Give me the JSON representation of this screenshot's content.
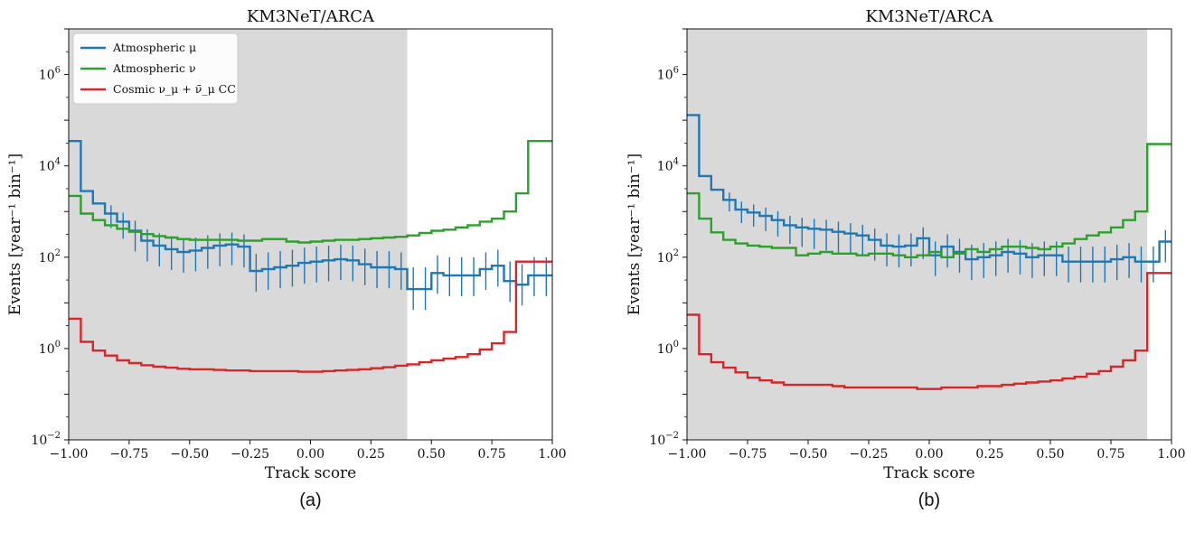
{
  "chart_data": [
    {
      "type": "line",
      "title": "KM3NeT/ARCA",
      "caption": "(a)",
      "xlabel": "Track score",
      "ylabel": "Events [year⁻¹ bin⁻¹]",
      "xlim": [
        -1.0,
        1.0
      ],
      "ylim_log10": [
        -2,
        7
      ],
      "xticks": [
        "−1.00",
        "−0.75",
        "−0.50",
        "−0.25",
        "0.00",
        "0.25",
        "0.50",
        "0.75",
        "1.00"
      ],
      "yticks": [
        {
          "base": "10",
          "exp": "−2",
          "value_log10": -2
        },
        {
          "base": "10",
          "exp": "0",
          "value_log10": 0
        },
        {
          "base": "10",
          "exp": "2",
          "value_log10": 2
        },
        {
          "base": "10",
          "exp": "4",
          "value_log10": 4
        },
        {
          "base": "10",
          "exp": "6",
          "value_log10": 6
        }
      ],
      "shaded_region": [
        -1.0,
        0.4
      ],
      "legend_position": "top-left",
      "bin_edges": [
        -1.0,
        -0.95,
        -0.9,
        -0.85,
        -0.8,
        -0.75,
        -0.7,
        -0.65,
        -0.6,
        -0.55,
        -0.5,
        -0.45,
        -0.4,
        -0.35,
        -0.3,
        -0.25,
        -0.2,
        -0.15,
        -0.1,
        -0.05,
        0.0,
        0.05,
        0.1,
        0.15,
        0.2,
        0.25,
        0.3,
        0.35,
        0.4,
        0.45,
        0.5,
        0.55,
        0.6,
        0.65,
        0.7,
        0.75,
        0.8,
        0.85,
        0.9,
        0.95,
        1.0
      ],
      "series": [
        {
          "name": "Atmospheric μ",
          "color": "#1f77b4",
          "errorbars": true,
          "values": [
            35000,
            2800,
            1500,
            900,
            600,
            380,
            230,
            180,
            150,
            130,
            140,
            160,
            180,
            190,
            170,
            50,
            55,
            60,
            65,
            75,
            80,
            85,
            90,
            85,
            70,
            60,
            60,
            55,
            20,
            20,
            45,
            40,
            40,
            40,
            55,
            65,
            30,
            25,
            40,
            40
          ]
        },
        {
          "name": "Atmospheric ν",
          "color": "#2ca02c",
          "errorbars": false,
          "values": [
            2200,
            900,
            650,
            500,
            420,
            360,
            320,
            290,
            270,
            250,
            240,
            240,
            240,
            240,
            230,
            230,
            250,
            250,
            220,
            210,
            220,
            230,
            240,
            240,
            250,
            260,
            270,
            280,
            300,
            340,
            380,
            400,
            450,
            500,
            600,
            700,
            1000,
            2500,
            35000,
            35000
          ]
        },
        {
          "name": "Cosmic ν_μ + ν̄_μ CC",
          "color": "#d62728",
          "errorbars": false,
          "values": [
            4.5,
            1.4,
            0.9,
            0.7,
            0.55,
            0.48,
            0.43,
            0.4,
            0.38,
            0.36,
            0.35,
            0.35,
            0.34,
            0.33,
            0.33,
            0.32,
            0.32,
            0.32,
            0.32,
            0.31,
            0.31,
            0.32,
            0.33,
            0.34,
            0.35,
            0.37,
            0.39,
            0.42,
            0.45,
            0.5,
            0.55,
            0.6,
            0.65,
            0.75,
            0.95,
            1.3,
            2.3,
            80,
            80,
            80
          ]
        }
      ]
    },
    {
      "type": "line",
      "title": "KM3NeT/ARCA",
      "caption": "(b)",
      "xlabel": "Track score",
      "ylabel": "Events [year⁻¹ bin⁻¹]",
      "xlim": [
        -1.0,
        1.0
      ],
      "ylim_log10": [
        -2,
        7
      ],
      "xticks": [
        "−1.00",
        "−0.75",
        "−0.50",
        "−0.25",
        "0.00",
        "0.25",
        "0.50",
        "0.75",
        "1.00"
      ],
      "yticks": [
        {
          "base": "10",
          "exp": "−2",
          "value_log10": -2
        },
        {
          "base": "10",
          "exp": "0",
          "value_log10": 0
        },
        {
          "base": "10",
          "exp": "2",
          "value_log10": 2
        },
        {
          "base": "10",
          "exp": "4",
          "value_log10": 4
        },
        {
          "base": "10",
          "exp": "6",
          "value_log10": 6
        }
      ],
      "shaded_region": [
        -1.0,
        0.9
      ],
      "bin_edges": [
        -1.0,
        -0.95,
        -0.9,
        -0.85,
        -0.8,
        -0.75,
        -0.7,
        -0.65,
        -0.6,
        -0.55,
        -0.5,
        -0.45,
        -0.4,
        -0.35,
        -0.3,
        -0.25,
        -0.2,
        -0.15,
        -0.1,
        -0.05,
        0.0,
        0.05,
        0.1,
        0.15,
        0.2,
        0.25,
        0.3,
        0.35,
        0.4,
        0.45,
        0.5,
        0.55,
        0.6,
        0.65,
        0.7,
        0.75,
        0.8,
        0.85,
        0.9,
        0.95,
        1.0
      ],
      "series": [
        {
          "name": "Atmospheric μ",
          "color": "#1f77b4",
          "errorbars": true,
          "values": [
            130000,
            6000,
            3000,
            1800,
            1100,
            950,
            800,
            650,
            500,
            450,
            420,
            400,
            360,
            330,
            300,
            240,
            180,
            170,
            180,
            260,
            110,
            170,
            130,
            90,
            100,
            110,
            130,
            120,
            100,
            110,
            110,
            80,
            80,
            80,
            80,
            90,
            100,
            80,
            80,
            220
          ]
        },
        {
          "name": "Atmospheric ν",
          "color": "#2ca02c",
          "errorbars": false,
          "values": [
            2500,
            700,
            350,
            240,
            200,
            180,
            170,
            160,
            160,
            110,
            120,
            130,
            120,
            120,
            110,
            120,
            120,
            110,
            100,
            110,
            130,
            100,
            120,
            150,
            130,
            150,
            170,
            170,
            160,
            150,
            170,
            200,
            250,
            300,
            350,
            450,
            650,
            1000,
            30000,
            30000
          ]
        },
        {
          "name": "Cosmic ν_μ + ν̄_μ CC",
          "color": "#d62728",
          "errorbars": false,
          "values": [
            5.5,
            0.75,
            0.5,
            0.38,
            0.3,
            0.23,
            0.2,
            0.18,
            0.16,
            0.16,
            0.16,
            0.16,
            0.15,
            0.14,
            0.14,
            0.14,
            0.14,
            0.14,
            0.14,
            0.13,
            0.13,
            0.14,
            0.14,
            0.14,
            0.15,
            0.15,
            0.16,
            0.17,
            0.18,
            0.19,
            0.2,
            0.22,
            0.24,
            0.28,
            0.32,
            0.4,
            0.55,
            0.9,
            45,
            45
          ]
        }
      ]
    }
  ]
}
